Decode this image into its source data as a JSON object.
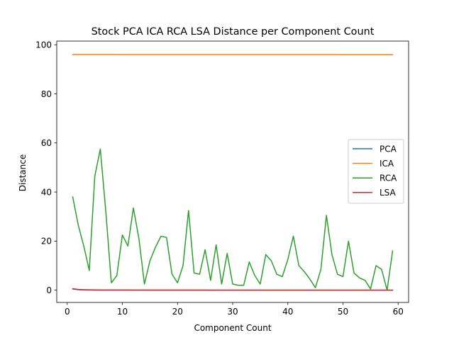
{
  "chart_data": {
    "type": "line",
    "title": "Stock PCA ICA RCA LSA Distance per Component Count",
    "xlabel": "Component Count",
    "ylabel": "Distance",
    "xlim": [
      -1.9,
      61.9
    ],
    "ylim": [
      -5,
      101.5
    ],
    "xticks": [
      0,
      10,
      20,
      30,
      40,
      50,
      60
    ],
    "yticks": [
      0,
      20,
      40,
      60,
      80,
      100
    ],
    "grid": false,
    "legend_position": "center-right",
    "x": [
      1,
      2,
      3,
      4,
      5,
      6,
      7,
      8,
      9,
      10,
      11,
      12,
      13,
      14,
      15,
      16,
      17,
      18,
      19,
      20,
      21,
      22,
      23,
      24,
      25,
      26,
      27,
      28,
      29,
      30,
      31,
      32,
      33,
      34,
      35,
      36,
      37,
      38,
      39,
      40,
      41,
      42,
      43,
      44,
      45,
      46,
      47,
      48,
      49,
      50,
      51,
      52,
      53,
      54,
      55,
      56,
      57,
      58,
      59
    ],
    "series": [
      {
        "name": "PCA",
        "color": "#1f77b4",
        "values": [
          0.5,
          0.2,
          0.1,
          0.05,
          0.03,
          0.02,
          0.02,
          0.01,
          0.01,
          0.01,
          0.01,
          0.01,
          0.01,
          0.01,
          0.01,
          0.01,
          0.01,
          0.01,
          0.01,
          0.01,
          0.01,
          0.01,
          0.01,
          0.01,
          0.01,
          0.01,
          0.01,
          0.01,
          0.01,
          0.01,
          0.01,
          0.01,
          0.01,
          0.01,
          0.01,
          0.01,
          0.01,
          0.01,
          0.01,
          0.01,
          0.01,
          0.01,
          0.01,
          0.01,
          0.01,
          0.01,
          0.01,
          0.01,
          0.01,
          0.01,
          0.01,
          0.01,
          0.01,
          0.01,
          0.01,
          0.01,
          0.01,
          0.01,
          0.01
        ]
      },
      {
        "name": "ICA",
        "color": "#ff7f0e",
        "values": [
          96.0,
          96.0,
          96.0,
          96.0,
          96.0,
          96.0,
          96.0,
          96.0,
          96.0,
          95.99,
          95.99,
          95.99,
          95.99,
          95.99,
          95.99,
          95.99,
          95.99,
          95.99,
          95.99,
          95.99,
          95.99,
          95.99,
          95.98,
          95.98,
          95.98,
          95.98,
          95.98,
          95.98,
          95.98,
          95.98,
          95.98,
          95.98,
          95.98,
          95.98,
          95.98,
          95.98,
          95.97,
          95.97,
          95.97,
          95.97,
          95.97,
          95.97,
          95.97,
          95.97,
          95.97,
          95.97,
          95.97,
          95.97,
          95.97,
          95.96,
          95.96,
          95.96,
          95.96,
          95.96,
          95.96,
          95.96,
          95.96,
          95.96,
          95.96
        ]
      },
      {
        "name": "RCA",
        "color": "#2ca02c",
        "values": [
          38,
          26.5,
          18,
          8,
          46.5,
          57.5,
          32,
          3,
          6,
          22.5,
          18,
          33.5,
          21,
          2.5,
          12,
          17.5,
          22,
          21.5,
          6.5,
          3,
          10,
          32.5,
          7,
          6.5,
          16.5,
          4,
          18.5,
          2.5,
          15,
          2.5,
          2,
          2,
          11.5,
          6,
          2.5,
          14.5,
          12,
          6.5,
          5.5,
          12.5,
          22,
          10,
          7.5,
          4.5,
          1,
          8.5,
          30.5,
          14.5,
          6.5,
          5.5,
          20,
          7,
          5,
          4,
          0.5,
          10,
          8.5,
          0,
          16
        ]
      },
      {
        "name": "LSA",
        "color": "#d62728",
        "values": [
          0.6,
          0.3,
          0.2,
          0.15,
          0.12,
          0.1,
          0.1,
          0.08,
          0.08,
          0.07,
          0.07,
          0.06,
          0.06,
          0.06,
          0.05,
          0.05,
          0.05,
          0.05,
          0.05,
          0.04,
          0.04,
          0.04,
          0.04,
          0.04,
          0.04,
          0.03,
          0.03,
          0.03,
          0.03,
          0.03,
          0.03,
          0.03,
          0.03,
          0.03,
          0.03,
          0.02,
          0.02,
          0.02,
          0.02,
          0.02,
          0.02,
          0.02,
          0.02,
          0.02,
          0.02,
          0.02,
          0.02,
          0.02,
          0.02,
          0.02,
          0.02,
          0.02,
          0.02,
          0.01,
          0.01,
          0.01,
          0.01,
          0.01,
          0.01
        ]
      }
    ]
  }
}
